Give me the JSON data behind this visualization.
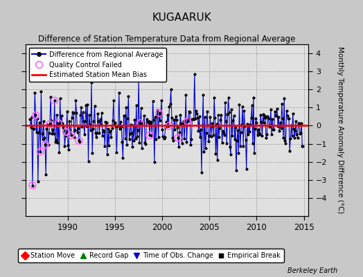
{
  "title": "KUGAARUK",
  "subtitle": "Difference of Station Temperature Data from Regional Average",
  "ylabel_right": "Monthly Temperature Anomaly Difference (°C)",
  "bias": 0.03,
  "xlim": [
    1985.5,
    2015.5
  ],
  "ylim": [
    -5,
    4.5
  ],
  "yticks": [
    -4,
    -3,
    -2,
    -1,
    0,
    1,
    2,
    3,
    4
  ],
  "xticks": [
    1990,
    1995,
    2000,
    2005,
    2010,
    2015
  ],
  "bg_color": "#c8c8c8",
  "plot_bg_color": "#e0e0e0",
  "line_color": "#0000cc",
  "dot_color": "#000000",
  "bias_color": "#ff0000",
  "qc_color": "#ff66ff",
  "watermark": "Berkeley Earth",
  "start_year": 1986.0,
  "end_year": 2014.917,
  "seed": 42
}
